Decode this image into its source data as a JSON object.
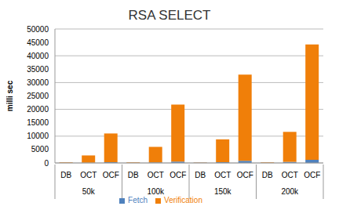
{
  "chart_data": {
    "type": "bar",
    "title": "RSA SELECT",
    "y_label": "milli sec",
    "categories": [
      "DB",
      "OCT",
      "OCF",
      "DB",
      "OCT",
      "OCF",
      "DB",
      "OCT",
      "OCF",
      "DB",
      "OCT",
      "OCF"
    ],
    "groups": [
      "50k",
      "100k",
      "150k",
      "200k"
    ],
    "series": [
      {
        "name": "Fetch",
        "color": "#4f81bd",
        "values": [
          100,
          100,
          300,
          100,
          200,
          500,
          100,
          300,
          800,
          100,
          400,
          1200
        ]
      },
      {
        "name": "Verification",
        "color": "#f07f09",
        "values": [
          200,
          2700,
          10700,
          200,
          5800,
          21300,
          100,
          8500,
          32200,
          200,
          11200,
          43000
        ]
      }
    ],
    "ylim": [
      0,
      50000
    ],
    "yticks": [
      0,
      5000,
      10000,
      15000,
      20000,
      25000,
      30000,
      35000,
      40000,
      45000,
      50000
    ],
    "grid": true,
    "stacked": true,
    "legend": "bottom"
  }
}
